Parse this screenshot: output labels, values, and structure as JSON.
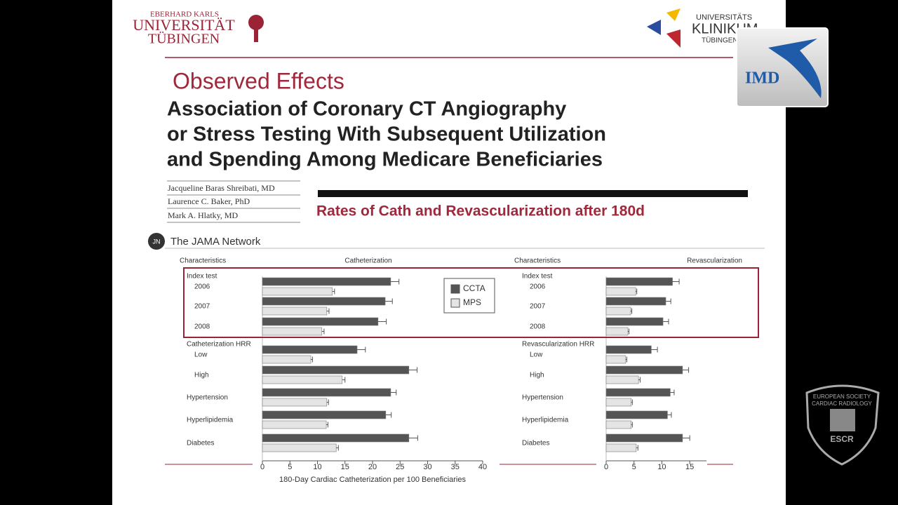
{
  "slide": {
    "logo_left": [
      "EBERHARD KARLS",
      "UNIVERSITÄT",
      "TÜBINGEN"
    ],
    "logo_right": [
      "UNIVERSITÄTS",
      "KLINIKUM",
      "TÜBINGEN"
    ],
    "logo_imd": "IMD",
    "logo_escr": [
      "EUROPEAN SOCIETY",
      "CARDIAC RADIOLOGY",
      "ESCR"
    ],
    "heading": "Observed Effects",
    "title_lines": [
      "Association of Coronary CT Angiography",
      "or Stress Testing With Subsequent Utilization",
      "and Spending Among Medicare Beneficiaries"
    ],
    "authors": [
      "Jacqueline Baras Shreibati, MD",
      "Laurence C. Baker, PhD",
      "Mark A. Hlatky, MD"
    ],
    "banner": "Rates of Cath and Revascularization after 180d",
    "network_badge": "JN",
    "network": "The JAMA Network"
  },
  "chart_data": [
    {
      "type": "bar",
      "orientation": "horizontal",
      "column_header": "Characteristics",
      "title": "Catheterization",
      "group_labels": [
        "Index test",
        "Catheterization HRR"
      ],
      "categories": [
        "2006",
        "2007",
        "2008",
        "Low",
        "High",
        "Hypertension",
        "Hyperlipidemia",
        "Diabetes"
      ],
      "series": [
        {
          "name": "CCTA",
          "color": "#555555",
          "values": [
            23.3,
            22.3,
            21.0,
            17.2,
            26.6,
            23.3,
            22.4,
            26.6
          ],
          "errors": [
            1.5,
            1.3,
            1.5,
            1.5,
            1.5,
            1.0,
            1.0,
            1.6
          ]
        },
        {
          "name": "MPS",
          "color": "#e4e4e4",
          "values": [
            12.7,
            11.7,
            10.8,
            8.8,
            14.5,
            11.7,
            11.6,
            13.4
          ],
          "errors": [
            0.4,
            0.4,
            0.4,
            0.3,
            0.5,
            0.3,
            0.3,
            0.4
          ]
        }
      ],
      "xlim": [
        0,
        40
      ],
      "xticks": [
        0,
        5,
        10,
        15,
        20,
        25,
        30,
        35,
        40
      ],
      "xlabel": "180-Day Cardiac Catheterization per 100 Beneficiaries"
    },
    {
      "type": "bar",
      "orientation": "horizontal",
      "column_header": "Characteristics",
      "title": "Revascularization",
      "group_labels": [
        "Index test",
        "Revascularization HRR"
      ],
      "categories": [
        "2006",
        "2007",
        "2008",
        "Low",
        "High",
        "Hypertension",
        "Hyperlipidemia",
        "Diabetes"
      ],
      "series": [
        {
          "color": "#555555",
          "values": [
            11.9,
            10.7,
            10.2,
            8.1,
            13.7,
            11.5,
            11.0,
            13.7
          ],
          "errors": [
            1.2,
            0.9,
            1.0,
            1.1,
            1.1,
            0.7,
            0.7,
            1.3
          ]
        },
        {
          "color": "#e4e4e4",
          "values": [
            5.3,
            4.4,
            3.9,
            3.5,
            5.8,
            4.5,
            4.5,
            5.4
          ],
          "errors": [
            0.2,
            0.2,
            0.2,
            0.2,
            0.3,
            0.2,
            0.2,
            0.3
          ]
        }
      ],
      "xlim": [
        0,
        18
      ],
      "xticks": [
        0,
        5,
        10,
        15
      ]
    }
  ]
}
